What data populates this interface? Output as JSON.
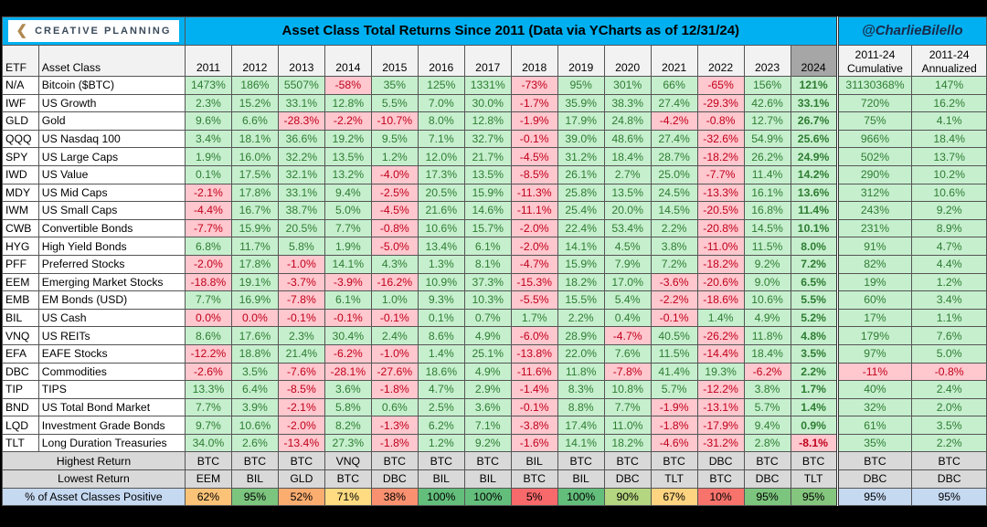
{
  "logo": {
    "text": "CREATIVE PLANNING"
  },
  "title": "Asset Class Total Returns Since 2011 (Data via YCharts as of 12/31/24)",
  "handle": "@CharlieBilello",
  "chart_data": {
    "type": "table",
    "columns": [
      "ETF",
      "Asset Class",
      "2011",
      "2012",
      "2013",
      "2014",
      "2015",
      "2016",
      "2017",
      "2018",
      "2019",
      "2020",
      "2021",
      "2022",
      "2023",
      "2024",
      "2011-24 Cumulative",
      "2011-24 Annualized"
    ],
    "col_labels": {
      "cum_top": "2011-24",
      "cum_bottom": "Cumulative",
      "ann_top": "2011-24",
      "ann_bottom": "Annualized"
    },
    "rows": [
      [
        "N/A",
        "Bitcoin ($BTC)",
        "1473%",
        "186%",
        "5507%",
        "-58%",
        "35%",
        "125%",
        "1331%",
        "-73%",
        "95%",
        "301%",
        "66%",
        "-65%",
        "156%",
        "121%",
        "31130368%",
        "147%"
      ],
      [
        "IWF",
        "US Growth",
        "2.3%",
        "15.2%",
        "33.1%",
        "12.8%",
        "5.5%",
        "7.0%",
        "30.0%",
        "-1.7%",
        "35.9%",
        "38.3%",
        "27.4%",
        "-29.3%",
        "42.6%",
        "33.1%",
        "720%",
        "16.2%"
      ],
      [
        "GLD",
        "Gold",
        "9.6%",
        "6.6%",
        "-28.3%",
        "-2.2%",
        "-10.7%",
        "8.0%",
        "12.8%",
        "-1.9%",
        "17.9%",
        "24.8%",
        "-4.2%",
        "-0.8%",
        "12.7%",
        "26.7%",
        "75%",
        "4.1%"
      ],
      [
        "QQQ",
        "US Nasdaq 100",
        "3.4%",
        "18.1%",
        "36.6%",
        "19.2%",
        "9.5%",
        "7.1%",
        "32.7%",
        "-0.1%",
        "39.0%",
        "48.6%",
        "27.4%",
        "-32.6%",
        "54.9%",
        "25.6%",
        "966%",
        "18.4%"
      ],
      [
        "SPY",
        "US Large Caps",
        "1.9%",
        "16.0%",
        "32.2%",
        "13.5%",
        "1.2%",
        "12.0%",
        "21.7%",
        "-4.5%",
        "31.2%",
        "18.4%",
        "28.7%",
        "-18.2%",
        "26.2%",
        "24.9%",
        "502%",
        "13.7%"
      ],
      [
        "IWD",
        "US Value",
        "0.1%",
        "17.5%",
        "32.1%",
        "13.2%",
        "-4.0%",
        "17.3%",
        "13.5%",
        "-8.5%",
        "26.1%",
        "2.7%",
        "25.0%",
        "-7.7%",
        "11.4%",
        "14.2%",
        "290%",
        "10.2%"
      ],
      [
        "MDY",
        "US Mid Caps",
        "-2.1%",
        "17.8%",
        "33.1%",
        "9.4%",
        "-2.5%",
        "20.5%",
        "15.9%",
        "-11.3%",
        "25.8%",
        "13.5%",
        "24.5%",
        "-13.3%",
        "16.1%",
        "13.6%",
        "312%",
        "10.6%"
      ],
      [
        "IWM",
        "US Small Caps",
        "-4.4%",
        "16.7%",
        "38.7%",
        "5.0%",
        "-4.5%",
        "21.6%",
        "14.6%",
        "-11.1%",
        "25.4%",
        "20.0%",
        "14.5%",
        "-20.5%",
        "16.8%",
        "11.4%",
        "243%",
        "9.2%"
      ],
      [
        "CWB",
        "Convertible Bonds",
        "-7.7%",
        "15.9%",
        "20.5%",
        "7.7%",
        "-0.8%",
        "10.6%",
        "15.7%",
        "-2.0%",
        "22.4%",
        "53.4%",
        "2.2%",
        "-20.8%",
        "14.5%",
        "10.1%",
        "231%",
        "8.9%"
      ],
      [
        "HYG",
        "High Yield Bonds",
        "6.8%",
        "11.7%",
        "5.8%",
        "1.9%",
        "-5.0%",
        "13.4%",
        "6.1%",
        "-2.0%",
        "14.1%",
        "4.5%",
        "3.8%",
        "-11.0%",
        "11.5%",
        "8.0%",
        "91%",
        "4.7%"
      ],
      [
        "PFF",
        "Preferred Stocks",
        "-2.0%",
        "17.8%",
        "-1.0%",
        "14.1%",
        "4.3%",
        "1.3%",
        "8.1%",
        "-4.7%",
        "15.9%",
        "7.9%",
        "7.2%",
        "-18.2%",
        "9.2%",
        "7.2%",
        "82%",
        "4.4%"
      ],
      [
        "EEM",
        "Emerging Market Stocks",
        "-18.8%",
        "19.1%",
        "-3.7%",
        "-3.9%",
        "-16.2%",
        "10.9%",
        "37.3%",
        "-15.3%",
        "18.2%",
        "17.0%",
        "-3.6%",
        "-20.6%",
        "9.0%",
        "6.5%",
        "19%",
        "1.2%"
      ],
      [
        "EMB",
        "EM Bonds (USD)",
        "7.7%",
        "16.9%",
        "-7.8%",
        "6.1%",
        "1.0%",
        "9.3%",
        "10.3%",
        "-5.5%",
        "15.5%",
        "5.4%",
        "-2.2%",
        "-18.6%",
        "10.6%",
        "5.5%",
        "60%",
        "3.4%"
      ],
      [
        "BIL",
        "US Cash",
        "0.0%",
        "0.0%",
        "-0.1%",
        "-0.1%",
        "-0.1%",
        "0.1%",
        "0.7%",
        "1.7%",
        "2.2%",
        "0.4%",
        "-0.1%",
        "1.4%",
        "4.9%",
        "5.2%",
        "17%",
        "1.1%"
      ],
      [
        "VNQ",
        "US REITs",
        "8.6%",
        "17.6%",
        "2.3%",
        "30.4%",
        "2.4%",
        "8.6%",
        "4.9%",
        "-6.0%",
        "28.9%",
        "-4.7%",
        "40.5%",
        "-26.2%",
        "11.8%",
        "4.8%",
        "179%",
        "7.6%"
      ],
      [
        "EFA",
        "EAFE Stocks",
        "-12.2%",
        "18.8%",
        "21.4%",
        "-6.2%",
        "-1.0%",
        "1.4%",
        "25.1%",
        "-13.8%",
        "22.0%",
        "7.6%",
        "11.5%",
        "-14.4%",
        "18.4%",
        "3.5%",
        "97%",
        "5.0%"
      ],
      [
        "DBC",
        "Commodities",
        "-2.6%",
        "3.5%",
        "-7.6%",
        "-28.1%",
        "-27.6%",
        "18.6%",
        "4.9%",
        "-11.6%",
        "11.8%",
        "-7.8%",
        "41.4%",
        "19.3%",
        "-6.2%",
        "2.2%",
        "-11%",
        "-0.8%"
      ],
      [
        "TIP",
        "TIPS",
        "13.3%",
        "6.4%",
        "-8.5%",
        "3.6%",
        "-1.8%",
        "4.7%",
        "2.9%",
        "-1.4%",
        "8.3%",
        "10.8%",
        "5.7%",
        "-12.2%",
        "3.8%",
        "1.7%",
        "40%",
        "2.4%"
      ],
      [
        "BND",
        "US Total Bond Market",
        "7.7%",
        "3.9%",
        "-2.1%",
        "5.8%",
        "0.6%",
        "2.5%",
        "3.6%",
        "-0.1%",
        "8.8%",
        "7.7%",
        "-1.9%",
        "-13.1%",
        "5.7%",
        "1.4%",
        "32%",
        "2.0%"
      ],
      [
        "LQD",
        "Investment Grade Bonds",
        "9.7%",
        "10.6%",
        "-2.0%",
        "8.2%",
        "-1.3%",
        "6.2%",
        "7.1%",
        "-3.8%",
        "17.4%",
        "11.0%",
        "-1.8%",
        "-17.9%",
        "9.4%",
        "0.9%",
        "61%",
        "3.5%"
      ],
      [
        "TLT",
        "Long Duration Treasuries",
        "34.0%",
        "2.6%",
        "-13.4%",
        "27.3%",
        "-1.8%",
        "1.2%",
        "9.2%",
        "-1.6%",
        "14.1%",
        "18.2%",
        "-4.6%",
        "-31.2%",
        "2.8%",
        "-8.1%",
        "35%",
        "2.2%"
      ]
    ],
    "footer": {
      "highest": {
        "label": "Highest Return",
        "values": [
          "BTC",
          "BTC",
          "BTC",
          "VNQ",
          "BTC",
          "BTC",
          "BTC",
          "BIL",
          "BTC",
          "BTC",
          "BTC",
          "DBC",
          "BTC",
          "BTC",
          "BTC",
          "BTC"
        ]
      },
      "lowest": {
        "label": "Lowest Return",
        "values": [
          "EEM",
          "BIL",
          "GLD",
          "BTC",
          "DBC",
          "BIL",
          "BIL",
          "BTC",
          "BIL",
          "DBC",
          "TLT",
          "BTC",
          "DBC",
          "TLT",
          "DBC",
          "DBC"
        ]
      },
      "positive": {
        "label": "% of Asset Classes Positive",
        "values": [
          "62%",
          "95%",
          "52%",
          "71%",
          "38%",
          "100%",
          "100%",
          "5%",
          "100%",
          "90%",
          "67%",
          "10%",
          "95%",
          "95%",
          "95%",
          "95%"
        ],
        "colors": [
          "#fbc377",
          "#7cc57e",
          "#fbad70",
          "#ffdc82",
          "#f99170",
          "#63be7b",
          "#63be7b",
          "#f8696b",
          "#63be7b",
          "#b5d680",
          "#fed480",
          "#f8736c",
          "#7cc57e",
          "#84c67e",
          "#c5d9f1",
          "#c5d9f1"
        ]
      }
    },
    "colors": {
      "positive_bg": "#c6efce",
      "positive_text": "#2e7d32",
      "negative_bg": "#ffc7ce",
      "negative_text": "#c0001a",
      "header_bg": "#00b0f0",
      "highlight_col": "#a6a6a6"
    }
  }
}
